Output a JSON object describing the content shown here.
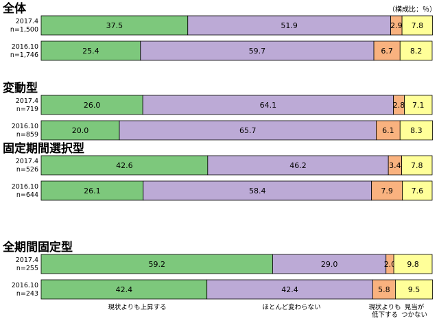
{
  "unit_note": "（構成比：％）",
  "chart_data": {
    "type": "bar",
    "orientation": "horizontal",
    "stacked": "100%",
    "xlim": [
      0,
      100
    ],
    "grid": false,
    "legend_position": "bottom",
    "colors": [
      "#7dc87c",
      "#bcaad6",
      "#f9b27f",
      "#ffff99"
    ],
    "legend": [
      "現状よりも上昇する",
      "ほとんど変わらない",
      "現状よりも低下する",
      "見当がつかない"
    ],
    "legend_lines": [
      [
        "現状よりも上昇する"
      ],
      [
        "ほとんど変わらない"
      ],
      [
        "現状よりも",
        "低下する"
      ],
      [
        "見当が",
        "つかない"
      ]
    ],
    "groups": [
      {
        "title": "全体",
        "rows": [
          {
            "period": "2017.4",
            "n": "n=1,500",
            "values": [
              37.5,
              51.9,
              2.9,
              7.8
            ],
            "labels": [
              "37.5",
              "51.9",
              "2.9",
              "7.8"
            ]
          },
          {
            "period": "2016.10",
            "n": "n=1,746",
            "values": [
              25.4,
              59.7,
              6.7,
              8.2
            ],
            "labels": [
              "25.4",
              "59.7",
              "6.7",
              "8.2"
            ]
          }
        ]
      },
      {
        "title": "変動型",
        "rows": [
          {
            "period": "2017.4",
            "n": "n=719",
            "values": [
              26.0,
              64.1,
              2.8,
              7.1
            ],
            "labels": [
              "26.0",
              "64.1",
              "2.8",
              "7.1"
            ]
          },
          {
            "period": "2016.10",
            "n": "n=859",
            "values": [
              20.0,
              65.7,
              6.1,
              8.3
            ],
            "labels": [
              "20.0",
              "65.7",
              "6.1",
              "8.3"
            ]
          }
        ]
      },
      {
        "title": "固定期間選択型",
        "rows": [
          {
            "period": "2017.4",
            "n": "n=526",
            "values": [
              42.6,
              46.2,
              3.4,
              7.8
            ],
            "labels": [
              "42.6",
              "46.2",
              "3.4",
              "7.8"
            ]
          },
          {
            "period": "2016.10",
            "n": "n=644",
            "values": [
              26.1,
              58.4,
              7.9,
              7.6
            ],
            "labels": [
              "26.1",
              "58.4",
              "7.9",
              "7.6"
            ]
          }
        ]
      },
      {
        "title": "全期間固定型",
        "rows": [
          {
            "period": "2017.4",
            "n": "n=255",
            "values": [
              59.2,
              29.0,
              2.0,
              9.8
            ],
            "labels": [
              "59.2",
              "29.0",
              "2.0",
              "9.8"
            ]
          },
          {
            "period": "2016.10",
            "n": "n=243",
            "values": [
              42.4,
              42.4,
              5.8,
              9.5
            ],
            "labels": [
              "42.4",
              "42.4",
              "5.8",
              "9.5"
            ]
          }
        ]
      }
    ]
  }
}
